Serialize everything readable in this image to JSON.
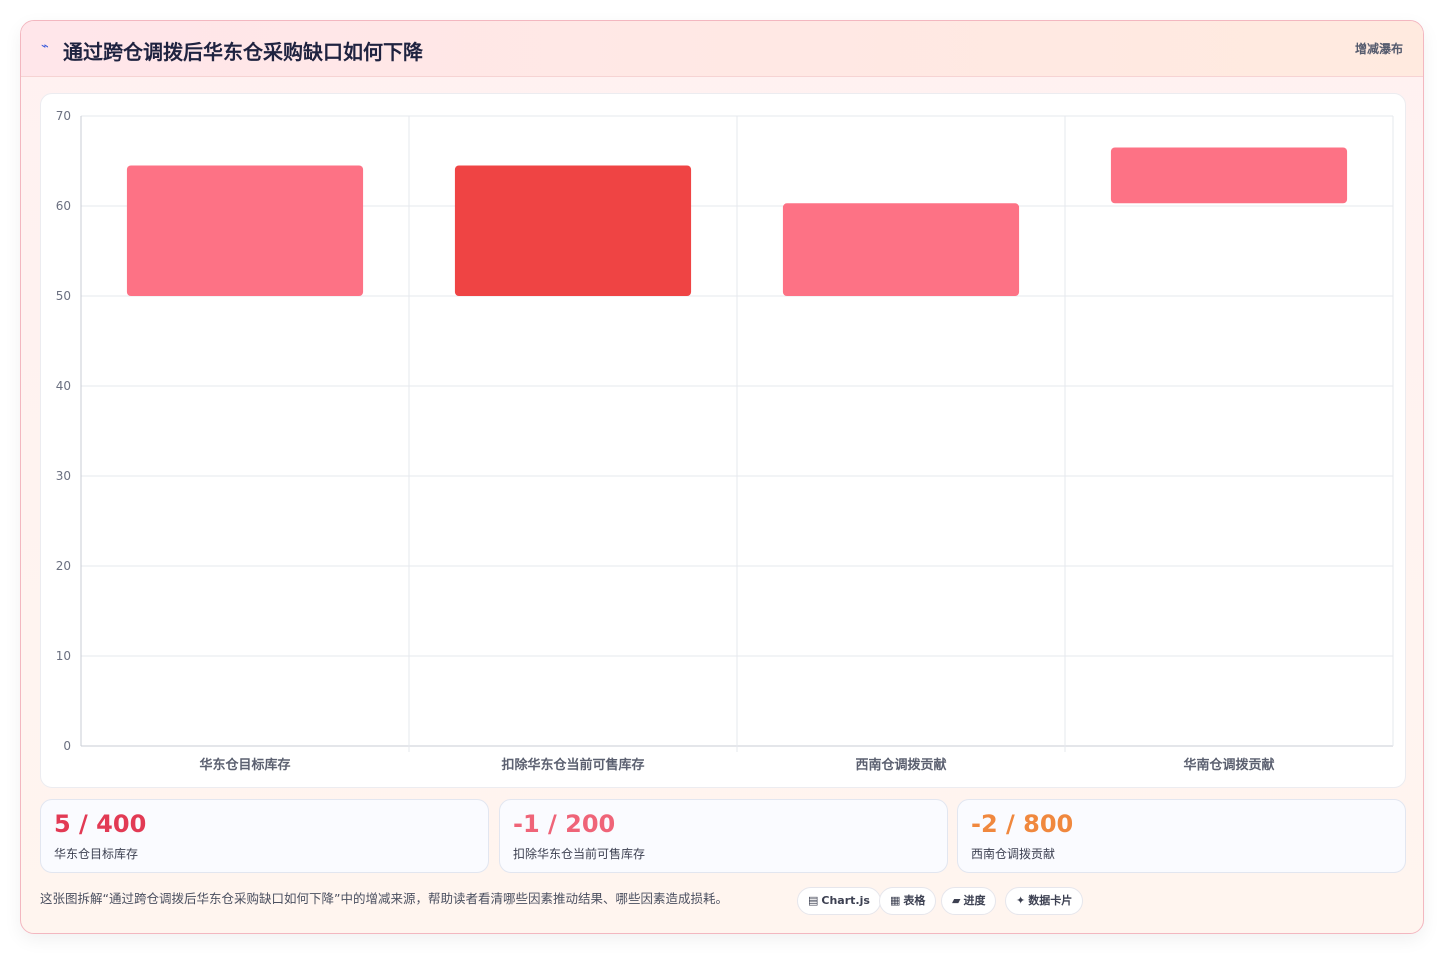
{
  "header": {
    "title": "通过跨仓调拨后华东仓采购缺口如何下降",
    "badge": "增减瀑布"
  },
  "chart_data": {
    "type": "bar",
    "subtype": "floating-waterfall",
    "categories": [
      "华东仓目标库存",
      "扣除华东仓当前可售库存",
      "西南仓调拨贡献",
      "华南仓调拨贡献"
    ],
    "ranges": [
      [
        50,
        64.5
      ],
      [
        50,
        64.5
      ],
      [
        50,
        60.3
      ],
      [
        60.3,
        66.5
      ]
    ],
    "colors": [
      "#fd7285",
      "#ef4444",
      "#fd7285",
      "#fd7285"
    ],
    "ylim": [
      0,
      70
    ],
    "yticks": [
      0,
      10,
      20,
      30,
      40,
      50,
      60,
      70
    ],
    "grid": true,
    "legend": "none"
  },
  "stats": [
    {
      "value": "5 / 400",
      "label": "华东仓目标库存",
      "color": "#e23a54"
    },
    {
      "value": "-1 / 200",
      "label": "扣除华东仓当前可售库存",
      "color": "#ef6478"
    },
    {
      "value": "-2 / 800",
      "label": "西南仓调拨贡献",
      "color": "#f0883e"
    }
  ],
  "footnote": "这张图拆解“通过跨仓调拨后华东仓采购缺口如何下降”中的增减来源，帮助读者看清哪些因素推动结果、哪些因素造成损耗。",
  "chips": [
    {
      "icon": "chart-icon",
      "glyph": "▤",
      "label": "Chart.js"
    },
    {
      "icon": "table-icon",
      "glyph": "▦",
      "label": "表格"
    },
    {
      "icon": "progress-icon",
      "glyph": "▰",
      "label": "进度"
    },
    {
      "icon": "sparkle-icon",
      "glyph": "✦",
      "label": "数据卡片"
    }
  ]
}
